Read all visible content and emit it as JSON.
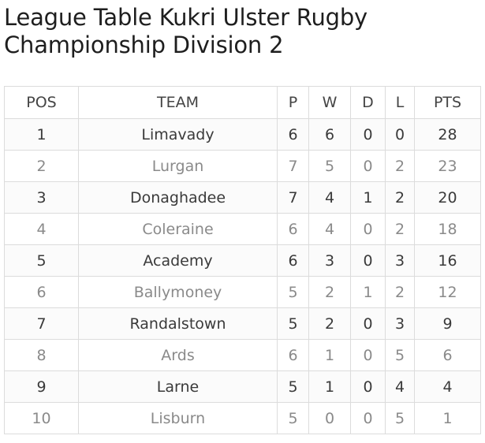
{
  "title": "League Table Kukri Ulster Rugby Championship Division 2",
  "table": {
    "headers": [
      "POS",
      "TEAM",
      "P",
      "W",
      "D",
      "L",
      "PTS"
    ],
    "rows": [
      [
        "1",
        "Limavady",
        "6",
        "6",
        "0",
        "0",
        "28"
      ],
      [
        "2",
        "Lurgan",
        "7",
        "5",
        "0",
        "2",
        "23"
      ],
      [
        "3",
        "Donaghadee",
        "7",
        "4",
        "1",
        "2",
        "20"
      ],
      [
        "4",
        "Coleraine",
        "6",
        "4",
        "0",
        "2",
        "18"
      ],
      [
        "5",
        "Academy",
        "6",
        "3",
        "0",
        "3",
        "16"
      ],
      [
        "6",
        "Ballymoney",
        "5",
        "2",
        "1",
        "2",
        "12"
      ],
      [
        "7",
        "Randalstown",
        "5",
        "2",
        "0",
        "3",
        "9"
      ],
      [
        "8",
        "Ards",
        "6",
        "1",
        "0",
        "5",
        "6"
      ],
      [
        "9",
        "Larne",
        "5",
        "1",
        "0",
        "4",
        "4"
      ],
      [
        "10",
        "Lisburn",
        "5",
        "0",
        "0",
        "5",
        "1"
      ]
    ]
  }
}
